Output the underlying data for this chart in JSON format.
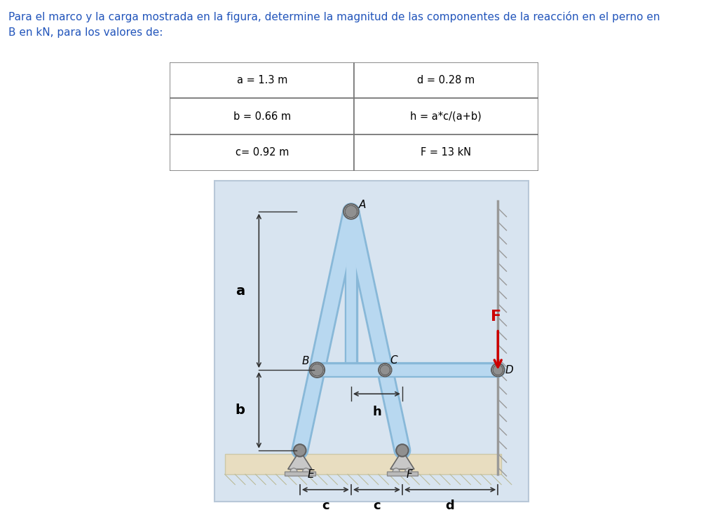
{
  "title_text": "Para el marco y la carga mostrada en la figura, determine la magnitud de las componentes de la reacción en el perno en\nB en kN, para los valores de:",
  "table_data": [
    [
      "a = 1.3 m",
      "d = 0.28 m"
    ],
    [
      "b = 0.66 m",
      "h = a*c/(a+b)"
    ],
    [
      "c= 0.92 m",
      "F = 13 kN"
    ]
  ],
  "bg_color": "#d8e4f0",
  "ground_color": "#e8ddc0",
  "frame_fill": "#b8d8f0",
  "frame_edge": "#88b8d8",
  "pin_color": "#909090",
  "pin_dark": "#606060",
  "support_color": "#b0b0b0",
  "wall_color": "#888888",
  "force_color": "#cc0000",
  "text_color": "#000000",
  "label_color": "#2255bb",
  "dim_color": "#333333"
}
